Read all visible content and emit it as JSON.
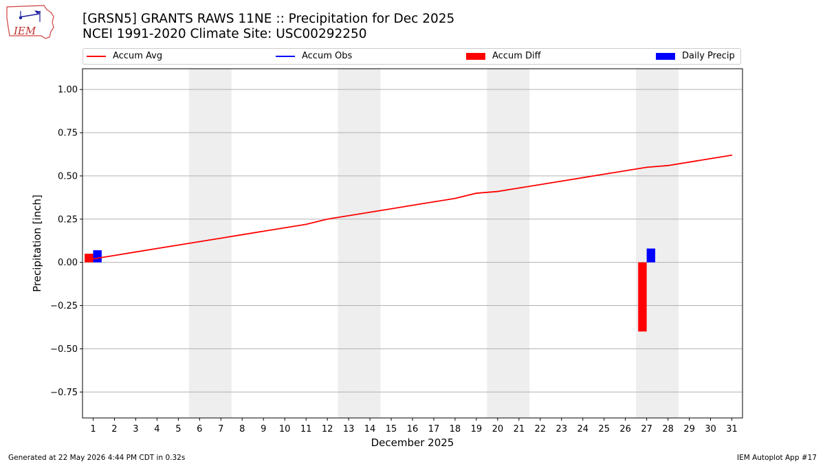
{
  "header": {
    "logo_text": "IEM",
    "title_line1": "[GRSN5] GRANTS RAWS 11NE :: Precipitation for Dec 2025",
    "title_line2": "NCEI 1991-2020 Climate Site: USC00292250"
  },
  "footer": {
    "generated": "Generated at 22 May 2026 4:44 PM CDT in 0.32s",
    "app": "IEM Autoplot App #17"
  },
  "colors": {
    "accum_avg": "#ff0000",
    "accum_obs": "#0000ff",
    "accum_diff": "#ff0000",
    "daily_precip": "#0000ff",
    "weekend_shade": "#eeeeee",
    "grid": "#b0b0b0"
  },
  "chart_data": {
    "type": "bar",
    "xlabel": "December 2025",
    "ylabel": "Precipitation [inch]",
    "xlim": [
      0.5,
      31.5
    ],
    "ylim": [
      -0.9,
      1.12
    ],
    "yticks": [
      -0.75,
      -0.5,
      -0.25,
      0.0,
      0.25,
      0.5,
      0.75,
      1.0
    ],
    "ytick_labels": [
      "−0.75",
      "−0.50",
      "−0.25",
      "0.00",
      "0.25",
      "0.50",
      "0.75",
      "1.00"
    ],
    "days": [
      1,
      2,
      3,
      4,
      5,
      6,
      7,
      8,
      9,
      10,
      11,
      12,
      13,
      14,
      15,
      16,
      17,
      18,
      19,
      20,
      21,
      22,
      23,
      24,
      25,
      26,
      27,
      28,
      29,
      30,
      31
    ],
    "day_labels": [
      "1",
      "2",
      "3",
      "4",
      "5",
      "6",
      "7",
      "8",
      "9",
      "10",
      "11",
      "12",
      "13",
      "14",
      "15",
      "16",
      "17",
      "18",
      "19",
      "20",
      "21",
      "22",
      "23",
      "24",
      "25",
      "26",
      "27",
      "28",
      "29",
      "30",
      "31"
    ],
    "grid": true,
    "legend_placement": "top",
    "weekend_spans": [
      [
        5.5,
        7.5
      ],
      [
        12.5,
        14.5
      ],
      [
        19.5,
        21.5
      ],
      [
        26.5,
        28.5
      ]
    ],
    "legend": [
      {
        "label": "Accum Avg",
        "kind": "line",
        "color": "#ff0000"
      },
      {
        "label": "Accum Obs",
        "kind": "line",
        "color": "#0000ff"
      },
      {
        "label": "Accum Diff",
        "kind": "box",
        "color": "#ff0000"
      },
      {
        "label": "Daily Precip",
        "kind": "box",
        "color": "#0000ff"
      }
    ],
    "series": [
      {
        "name": "Accum Avg",
        "type": "line",
        "color": "#ff0000",
        "values": [
          0.02,
          0.04,
          0.06,
          0.08,
          0.1,
          0.12,
          0.14,
          0.16,
          0.18,
          0.2,
          0.22,
          0.25,
          0.27,
          0.29,
          0.31,
          0.33,
          0.35,
          0.37,
          0.4,
          0.41,
          0.43,
          0.45,
          0.47,
          0.49,
          0.51,
          0.53,
          0.55,
          0.56,
          0.58,
          0.6,
          0.62
        ]
      },
      {
        "name": "Accum Diff",
        "type": "bar",
        "color": "#ff0000",
        "values": [
          0.05,
          0,
          0,
          0,
          0,
          0,
          0,
          0,
          0,
          0,
          0,
          0,
          0,
          0,
          0,
          0,
          0,
          0,
          0,
          0,
          0,
          0,
          0,
          0,
          0,
          0,
          -0.4,
          0,
          0,
          0,
          0
        ]
      },
      {
        "name": "Daily Precip",
        "type": "bar",
        "color": "#0000ff",
        "values": [
          0.07,
          0,
          0,
          0,
          0,
          0,
          0,
          0,
          0,
          0,
          0,
          0,
          0,
          0,
          0,
          0,
          0,
          0,
          0,
          0,
          0,
          0,
          0,
          0,
          0,
          0,
          0.08,
          0,
          0,
          0,
          0
        ]
      }
    ]
  }
}
